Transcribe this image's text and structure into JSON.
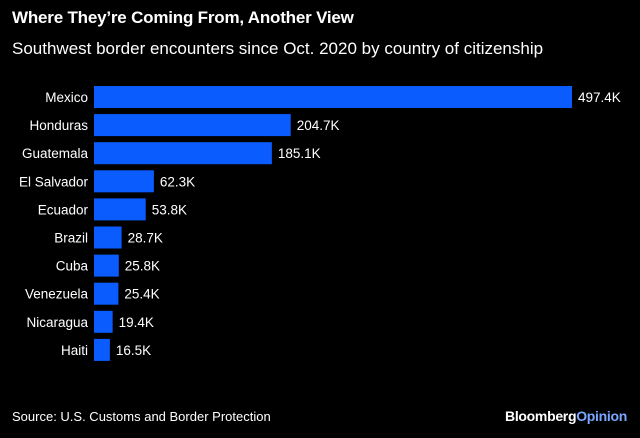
{
  "chart_data": {
    "type": "bar",
    "orientation": "horizontal",
    "title": "Where They’re Coming From, Another View",
    "subtitle": "Southwest border encounters since Oct. 2020 by country of citizenship",
    "categories": [
      "Mexico",
      "Honduras",
      "Guatemala",
      "El Salvador",
      "Ecuador",
      "Brazil",
      "Cuba",
      "Venezuela",
      "Nicaragua",
      "Haiti"
    ],
    "values": [
      497.4,
      204.7,
      185.1,
      62.3,
      53.8,
      28.7,
      25.8,
      25.4,
      19.4,
      16.5
    ],
    "value_labels": [
      "497.4K",
      "204.7K",
      "185.1K",
      "62.3K",
      "53.8K",
      "28.7K",
      "25.8K",
      "25.4K",
      "19.4K",
      "16.5K"
    ],
    "xlim": [
      0,
      497.4
    ],
    "grid": false,
    "bar_color": "#0a5cff",
    "background": "#000000"
  },
  "footer": {
    "source": "Source: U.S. Customs and Border Protection",
    "brand_main": "Bloomberg",
    "brand_accent": "Opinion"
  }
}
